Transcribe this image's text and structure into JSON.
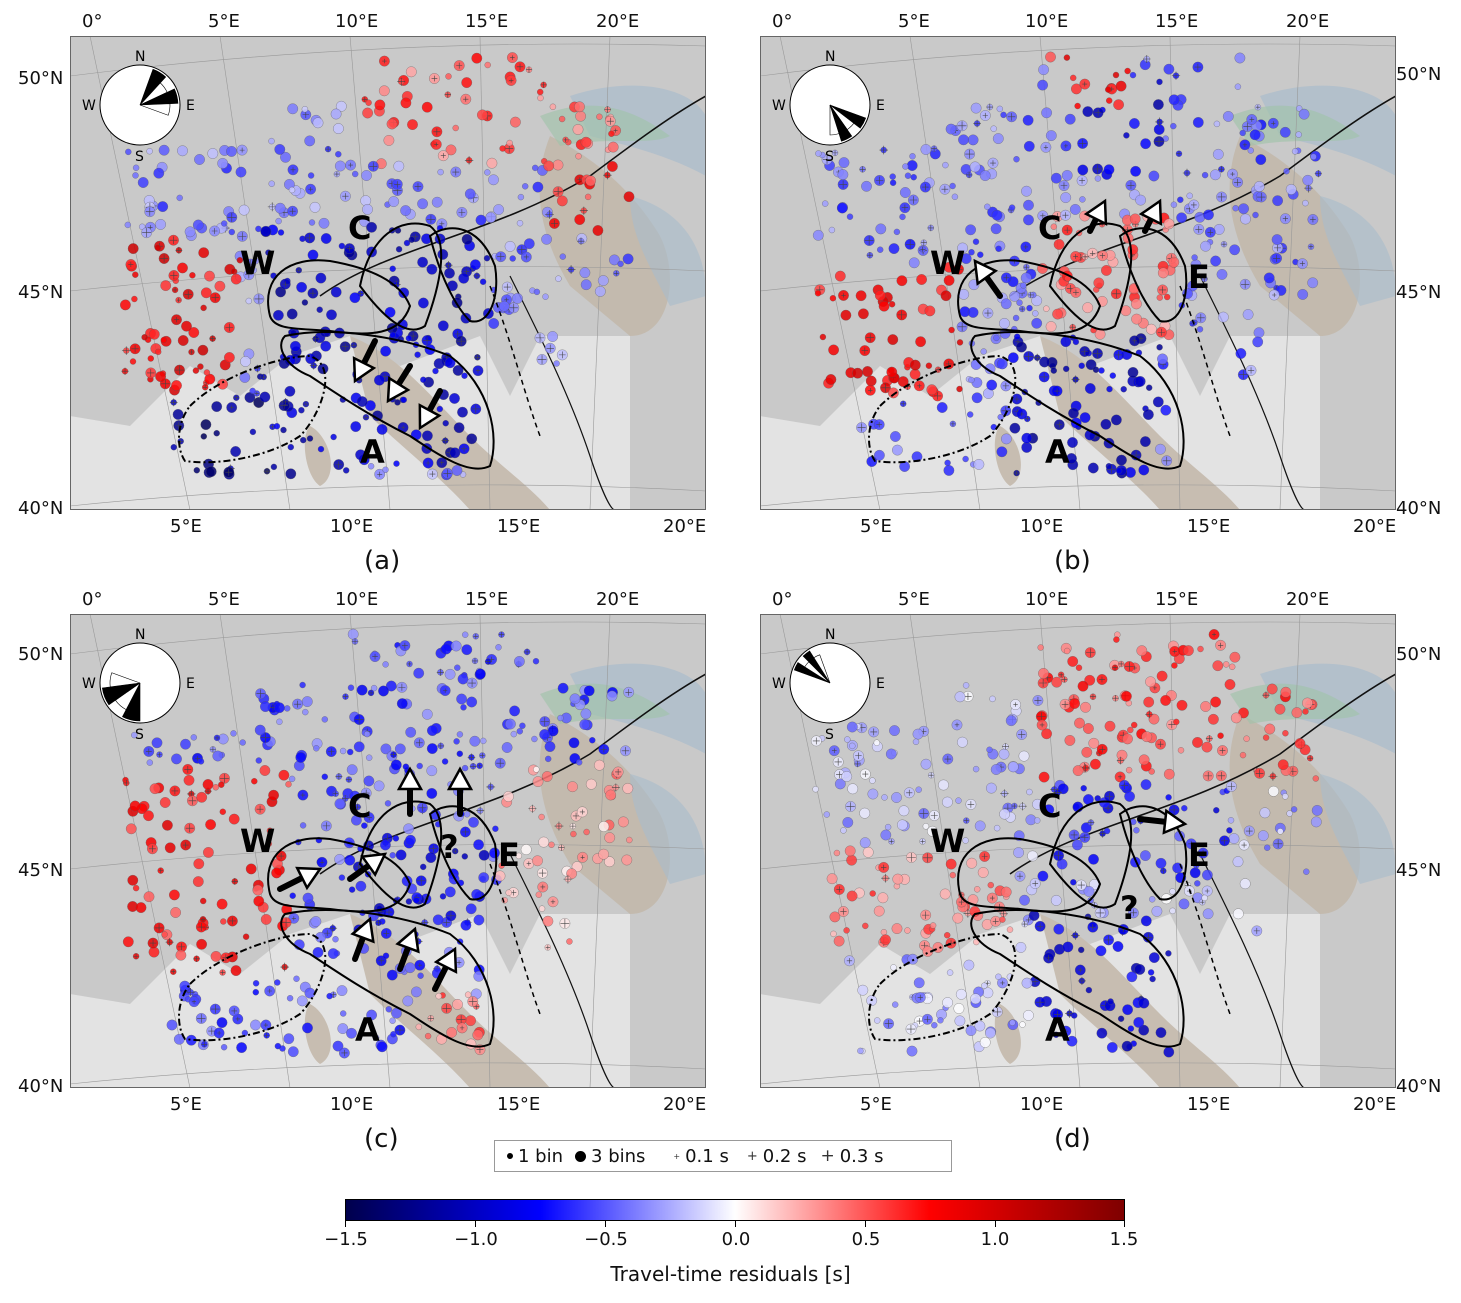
{
  "panels": [
    {
      "id": "a",
      "label": "(a)",
      "sector_start": 20,
      "sector_end": 110
    },
    {
      "id": "b",
      "label": "(b)",
      "sector_start": 110,
      "sector_end": 180
    },
    {
      "id": "c",
      "label": "(c)",
      "sector_start": 180,
      "sector_end": 290
    },
    {
      "id": "d",
      "label": "(d)",
      "sector_start": 290,
      "sector_end": 340
    }
  ],
  "axes": {
    "top_lon_labels": [
      "0°",
      "5°E",
      "10°E",
      "15°E",
      "20°E"
    ],
    "bottom_lon_labels": [
      "5°E",
      "10°E",
      "15°E",
      "20°E"
    ],
    "lat_labels": [
      "50°N",
      "45°N",
      "40°N"
    ]
  },
  "compass": {
    "n": "N",
    "e": "E",
    "s": "S",
    "w": "W"
  },
  "regions": {
    "w": "W",
    "c": "C",
    "a": "A",
    "e": "E",
    "q": "?"
  },
  "legend": {
    "bin1": "1 bin",
    "bin3": "3 bins",
    "s01": "0.1 s",
    "s02": "0.2 s",
    "s03": "0.3 s"
  },
  "colorbar": {
    "ticks": [
      "−1.5",
      "−1.0",
      "−0.5",
      "0.0",
      "0.5",
      "1.0",
      "1.5"
    ],
    "title": "Travel-time residuals [s]",
    "colors": {
      "min": "#00004c",
      "neg": "#0000ff",
      "zero": "#ffffff",
      "pos": "#ff0000",
      "max": "#7f0000"
    }
  }
}
